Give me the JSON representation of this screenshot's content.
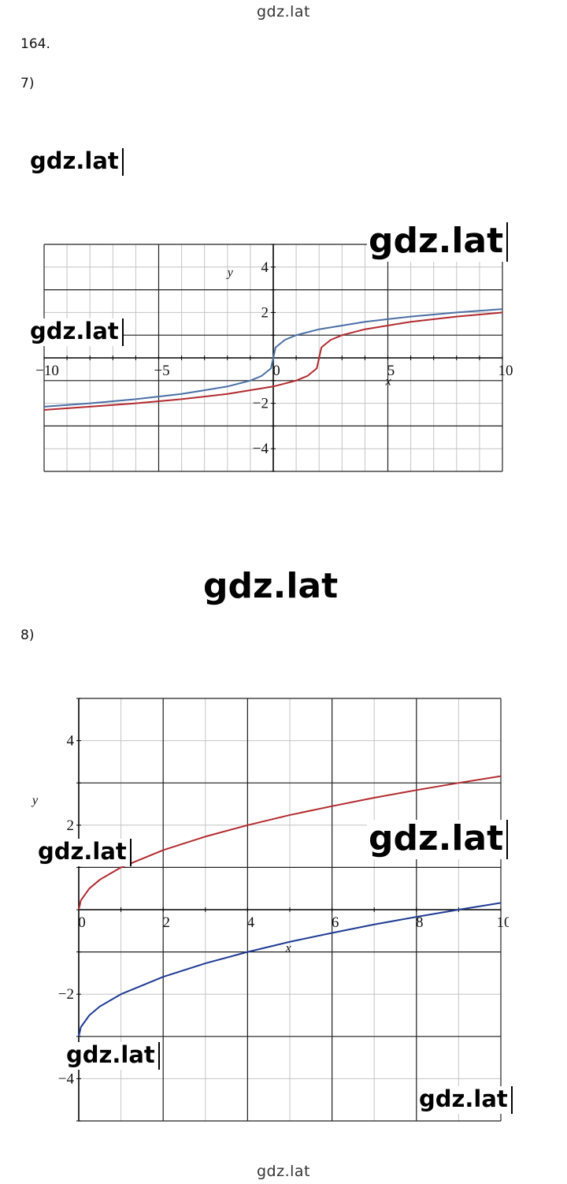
{
  "site": {
    "top": "gdz.lat",
    "bottom": "gdz.lat"
  },
  "task": {
    "number": "164.",
    "part7": "7)",
    "part8": "8)"
  },
  "watermarks": {
    "w1": "gdz.lat",
    "w2": "gdz.lat",
    "w3": "gdz.lat",
    "w4": "gdz.lat",
    "w5": "gdz.lat",
    "w6": "gdz.lat",
    "w7": "gdz.lat",
    "w8": "gdz.lat"
  },
  "chart_data": [
    {
      "type": "line",
      "title": "",
      "xlabel": "x",
      "ylabel": "y",
      "xlim": [
        -10,
        10
      ],
      "ylim": [
        -5,
        5
      ],
      "x_ticks": [
        -10,
        -5,
        0,
        5,
        10
      ],
      "x_tick_labels": [
        "−10",
        "−5",
        "0",
        "5",
        "10"
      ],
      "y_ticks": [
        4,
        2,
        -2,
        -4
      ],
      "y_tick_labels": [
        "4",
        "2",
        "−2",
        "−4"
      ],
      "grid": true,
      "series": [
        {
          "color": "#4a6fa5",
          "formula": "cbrt(x)",
          "x": [
            -10,
            -8,
            -6,
            -4,
            -2,
            -1,
            -0.5,
            -0.1,
            0,
            0.1,
            0.5,
            1,
            2,
            4,
            6,
            8,
            10
          ],
          "y": [
            -2.15,
            -2.0,
            -1.82,
            -1.59,
            -1.26,
            -1.0,
            -0.79,
            -0.46,
            0,
            0.46,
            0.79,
            1.0,
            1.26,
            1.59,
            1.82,
            2.0,
            2.15
          ]
        },
        {
          "color": "#b22a2f",
          "formula": "cbrt(x-2)",
          "x": [
            -10,
            -8,
            -6,
            -4,
            -2,
            0,
            1,
            1.5,
            1.9,
            2,
            2.1,
            2.5,
            3,
            4,
            6,
            8,
            10
          ],
          "y": [
            -2.29,
            -2.15,
            -2.0,
            -1.82,
            -1.59,
            -1.26,
            -1.0,
            -0.79,
            -0.46,
            0,
            0.46,
            0.79,
            1.0,
            1.26,
            1.59,
            1.82,
            2.0
          ]
        }
      ]
    },
    {
      "type": "line",
      "title": "",
      "xlabel": "x",
      "ylabel": "y",
      "xlim": [
        0,
        10
      ],
      "ylim": [
        -5,
        5
      ],
      "x_ticks": [
        0,
        2,
        4,
        6,
        8,
        10
      ],
      "x_tick_labels": [
        "0",
        "2",
        "4",
        "6",
        "8",
        "10"
      ],
      "y_ticks": [
        4,
        2,
        -2,
        -4
      ],
      "y_tick_labels": [
        "4",
        "2",
        "−2",
        "−4"
      ],
      "grid": true,
      "series": [
        {
          "color": "#b22a2f",
          "formula": "sqrt(x)",
          "x": [
            0,
            0.05,
            0.25,
            0.5,
            1,
            2,
            3,
            4,
            5,
            6,
            7,
            8,
            9,
            10
          ],
          "y": [
            0,
            0.22,
            0.5,
            0.71,
            1.0,
            1.41,
            1.73,
            2.0,
            2.24,
            2.45,
            2.65,
            2.83,
            3.0,
            3.16
          ]
        },
        {
          "color": "#1f3a93",
          "formula": "sqrt(x)-3",
          "x": [
            0,
            0.05,
            0.25,
            0.5,
            1,
            2,
            3,
            4,
            5,
            6,
            7,
            8,
            9,
            10
          ],
          "y": [
            -3.0,
            -2.78,
            -2.5,
            -2.29,
            -2.0,
            -1.59,
            -1.27,
            -1.0,
            -0.76,
            -0.55,
            -0.35,
            -0.17,
            0,
            0.16
          ]
        }
      ]
    }
  ]
}
